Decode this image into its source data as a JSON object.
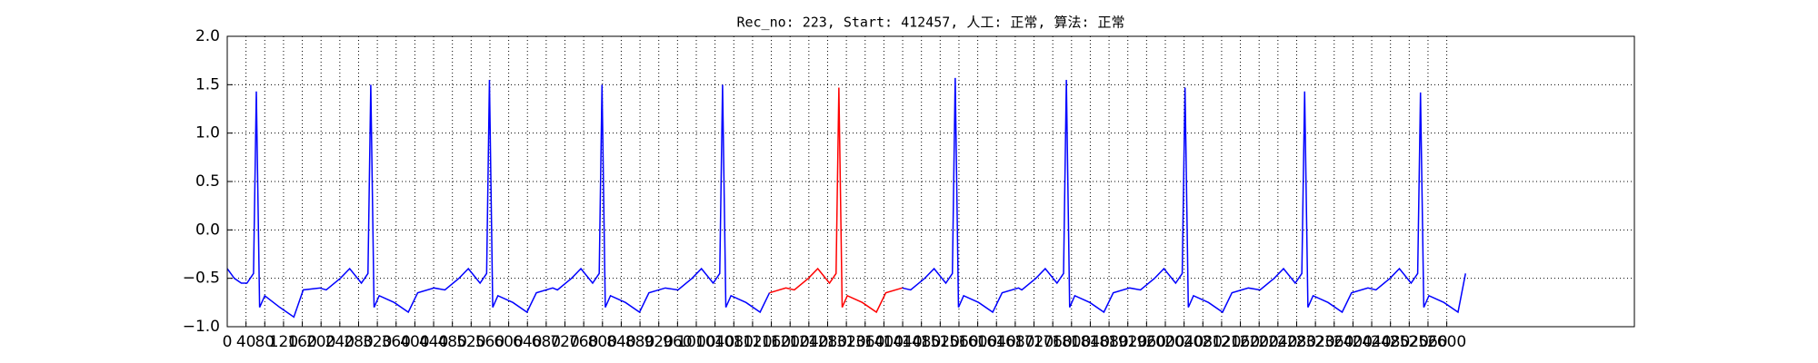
{
  "chart_data": {
    "type": "line",
    "title": "Rec_no: 223, Start: 412457, 人工: 正常, 算法: 正常",
    "x": [
      0,
      15,
      30,
      42,
      56,
      62,
      69,
      80,
      112,
      142,
      162,
      197,
      211,
      241,
      261,
      286,
      300,
      306,
      313,
      324,
      356,
      386,
      406,
      441,
      464,
      494,
      514,
      539,
      553,
      559,
      566,
      577,
      609,
      639,
      659,
      694,
      704,
      734,
      754,
      779,
      793,
      799,
      806,
      817,
      849,
      879,
      899,
      934,
      961,
      991,
      1011,
      1036,
      1050,
      1056,
      1063,
      1074,
      1106,
      1136,
      1156,
      1191,
      1209,
      1239,
      1259,
      1284,
      1298,
      1304,
      1311,
      1322,
      1354,
      1384,
      1404,
      1439,
      1457,
      1487,
      1507,
      1532,
      1546,
      1552,
      1559,
      1570,
      1602,
      1632,
      1652,
      1687,
      1694,
      1724,
      1744,
      1769,
      1783,
      1789,
      1796,
      1807,
      1839,
      1869,
      1889,
      1924,
      1947,
      1977,
      1997,
      2022,
      2036,
      2042,
      2049,
      2060,
      2092,
      2122,
      2142,
      2177,
      2202,
      2232,
      2252,
      2277,
      2291,
      2297,
      2304,
      2315,
      2347,
      2377,
      2397,
      2432,
      2449,
      2479,
      2499,
      2524,
      2538,
      2544,
      2551,
      2562,
      2594,
      2624,
      2640
    ],
    "series": [
      {
        "color": "#0000ff",
        "values": [
          -0.4,
          -0.5,
          -0.55,
          -0.55,
          -0.45,
          1.43,
          -0.8,
          -0.68,
          -0.8,
          -0.9,
          -0.62,
          -0.6,
          -0.62,
          -0.5,
          -0.4,
          -0.55,
          -0.45,
          1.5,
          -0.8,
          -0.68,
          -0.75,
          -0.85,
          -0.65,
          -0.6,
          -0.62,
          -0.5,
          -0.4,
          -0.55,
          -0.45,
          1.55,
          -0.8,
          -0.68,
          -0.75,
          -0.85,
          -0.65,
          -0.6,
          -0.62,
          -0.5,
          -0.4,
          -0.55,
          -0.45,
          1.5,
          -0.8,
          -0.68,
          -0.75,
          -0.85,
          -0.65,
          -0.6,
          -0.62,
          -0.5,
          -0.4,
          -0.55,
          -0.45,
          1.5,
          -0.8,
          -0.68,
          -0.75,
          -0.85,
          -0.65,
          null,
          null,
          null,
          null,
          null,
          null,
          null,
          null,
          null,
          null,
          null,
          null,
          -0.6,
          -0.62,
          -0.5,
          -0.4,
          -0.55,
          -0.45,
          1.57,
          -0.8,
          -0.68,
          -0.75,
          -0.85,
          -0.65,
          -0.6,
          -0.62,
          -0.5,
          -0.4,
          -0.55,
          -0.45,
          1.55,
          -0.8,
          -0.68,
          -0.75,
          -0.85,
          -0.65,
          -0.6,
          -0.62,
          -0.5,
          -0.4,
          -0.55,
          -0.45,
          1.47,
          -0.8,
          -0.68,
          -0.75,
          -0.85,
          -0.65,
          -0.6,
          -0.62,
          -0.5,
          -0.4,
          -0.55,
          -0.45,
          1.43,
          -0.8,
          -0.68,
          -0.75,
          -0.85,
          -0.65,
          -0.6,
          -0.62,
          -0.5,
          -0.4,
          -0.55,
          -0.45,
          1.42,
          -0.8,
          -0.68,
          -0.75,
          -0.85,
          -0.45
        ]
      },
      {
        "color": "#ff0000",
        "x": [
          1156,
          1191,
          1209,
          1239,
          1259,
          1284,
          1298,
          1304,
          1311,
          1322,
          1354,
          1384,
          1404,
          1439
        ],
        "values": [
          -0.65,
          -0.6,
          -0.62,
          -0.5,
          -0.4,
          -0.55,
          -0.45,
          1.47,
          -0.8,
          -0.68,
          -0.75,
          -0.85,
          -0.65,
          -0.6
        ]
      }
    ],
    "xlim": [
      0,
      3000
    ],
    "xticks": [
      0,
      40,
      80,
      120,
      160,
      200,
      240,
      280,
      320,
      360,
      400,
      440,
      480,
      520,
      560,
      600,
      640,
      680,
      720,
      760,
      800,
      840,
      880,
      920,
      960,
      1000,
      1040,
      1080,
      1120,
      1160,
      1200,
      1240,
      1280,
      1320,
      1360,
      1400,
      1440,
      1480,
      1520,
      1560,
      1600,
      1640,
      1680,
      1720,
      1760,
      1800,
      1840,
      1880,
      1920,
      1960,
      2000,
      2040,
      2080,
      2120,
      2160,
      2200,
      2240,
      2280,
      2320,
      2360,
      2400,
      2440,
      2480,
      2520,
      2560,
      2600
    ],
    "ylim": [
      -1,
      2
    ],
    "yticks": [
      {
        "value": -1,
        "label": "−1.0"
      },
      {
        "value": -0.5,
        "label": "−0.5"
      },
      {
        "value": 0,
        "label": "0.0"
      },
      {
        "value": 0.5,
        "label": "0.5"
      },
      {
        "value": 1,
        "label": "1.0"
      },
      {
        "value": 1.5,
        "label": "1.5"
      },
      {
        "value": 2,
        "label": "2.0"
      }
    ],
    "grid": true
  }
}
